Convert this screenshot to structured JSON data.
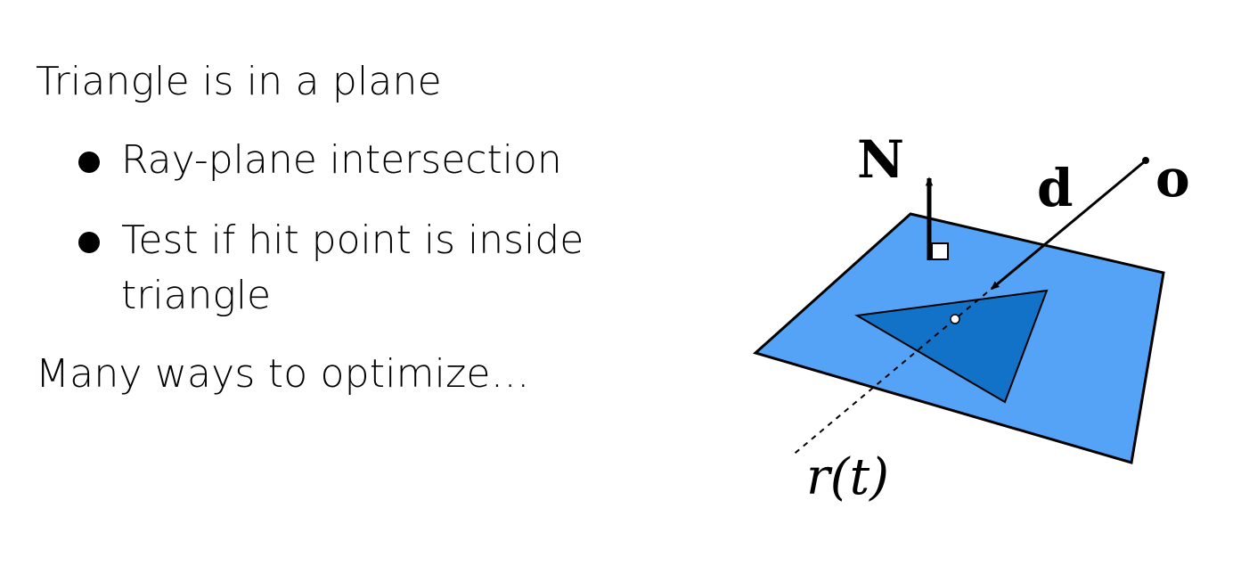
{
  "slide": {
    "line1": "Triangle is in a plane",
    "bullets": [
      {
        "text": "Ray-plane intersection"
      },
      {
        "text": "Test if hit point is inside"
      },
      {
        "text": "triangle"
      }
    ],
    "line2": "Many ways to optimize…"
  },
  "diagram": {
    "normal_label": "N",
    "direction_label": "d",
    "origin_label": "o",
    "ray_label": "r(t)",
    "colors": {
      "plane": "#55a3f7",
      "triangle": "#1272c8",
      "stroke": "#000000"
    }
  }
}
